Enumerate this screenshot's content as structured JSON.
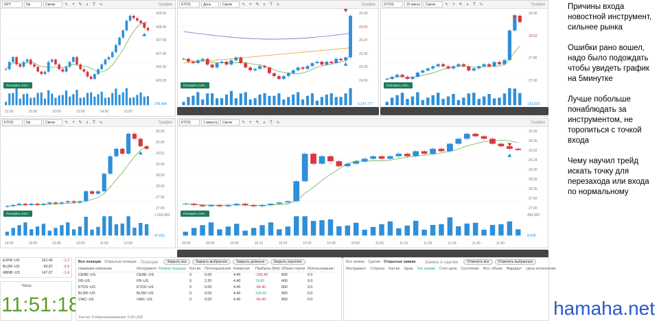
{
  "colors": {
    "up": "#2f8fd8",
    "down": "#d8383f",
    "order_button": "#1e7b5b",
    "clock": "#5c9d2a",
    "watermark": "#2b58c8"
  },
  "toolbar_common": {
    "chart_type": "Свечи",
    "title": "График"
  },
  "charts": [
    {
      "ticker": "SPY",
      "interval": "5м",
      "order_label": "Положить счёт...",
      "y_ticks": [
        "428.50",
        "428.00",
        "427.50",
        "427.00",
        "426.50",
        "426.00"
      ],
      "x_ticks": [
        "12:00",
        "15:00",
        "10:00",
        "12:00",
        "14:00",
        "15:00"
      ],
      "volume_label": "378,404",
      "chart_data": {
        "type": "candlestick",
        "closes": [
          426.6,
          426.9,
          427.1,
          426.8,
          426.7,
          426.9,
          427.0,
          426.8,
          426.7,
          426.5,
          426.4,
          426.5,
          426.9,
          427.0,
          426.8,
          426.6,
          426.5,
          426.7,
          426.9,
          427.1,
          426.8,
          426.6,
          426.5,
          426.3,
          426.2,
          426.4,
          426.6,
          426.8,
          427.0,
          427.1,
          427.3,
          427.6,
          427.9,
          428.2,
          428.6,
          428.8,
          428.7,
          428.6,
          428.5,
          428.3,
          428.2
        ]
      }
    },
    {
      "ticker": "KTOS",
      "interval": "День",
      "order_label": "Положить счёт...",
      "y_ticks": [
        "30.00",
        "29.52",
        "26.97",
        "25.90",
        "25.00",
        "24.00"
      ],
      "x_ticks": [
        "08 Apr",
        "15 Apr",
        "26 Apr",
        "04 May",
        "13 May",
        "20 May",
        "28 May",
        "04 Jun",
        "10 Jun",
        "18 Jun",
        "24 Jun",
        "02 Jul"
      ],
      "volume_label": "5,147,777",
      "chart_data": {
        "type": "candlestick",
        "closes": [
          26.6,
          26.4,
          26.3,
          26.5,
          26.6,
          26.2,
          26.0,
          26.3,
          26.4,
          26.2,
          26.5,
          26.7,
          26.3,
          26.0,
          25.8,
          25.9,
          26.1,
          26.0,
          25.6,
          25.4,
          25.2,
          25.4,
          25.6,
          25.8,
          26.0,
          25.9,
          26.1,
          26.3,
          26.4,
          26.2,
          26.4,
          26.3,
          26.6,
          26.5,
          26.7,
          29.6
        ]
      }
    },
    {
      "ticker": "KTOS",
      "interval": "15 минут",
      "order_label": "Положить счёт...",
      "y_ticks": [
        "30.00",
        "29.52",
        "27.86",
        "27.00"
      ],
      "x_ticks": [
        "12:00",
        "15:00",
        "10:00",
        "12:00",
        "14:00",
        "10:00",
        "12:00",
        "15:00",
        "12:00"
      ],
      "volume_label": "133,603",
      "chart_data": {
        "type": "candlestick",
        "closes": [
          26.9,
          27.0,
          27.1,
          27.0,
          26.9,
          27.0,
          27.2,
          27.3,
          27.4,
          27.5,
          27.6,
          27.5,
          27.4,
          27.5,
          27.6,
          27.5,
          27.3,
          27.4,
          27.5,
          27.6,
          27.5,
          27.7,
          27.6,
          27.8,
          29.2,
          29.9,
          29.6
        ]
      }
    },
    {
      "ticker": "KTOS",
      "interval": "5м",
      "order_label": "Положить счёт...",
      "y_ticks": [
        "30.50",
        "30.00",
        "29.52",
        "29.00",
        "28.50",
        "28.00",
        "27.50",
        "27.00"
      ],
      "x_ticks": [
        "14:00",
        "15:00",
        "15:45",
        "10:00",
        "11:00",
        "12:00"
      ],
      "volume_label": "47,631",
      "volume_top": "1,000,000",
      "chart_data": {
        "type": "candlestick",
        "closes": [
          27.3,
          27.35,
          27.4,
          27.35,
          27.4,
          27.35,
          27.4,
          27.45,
          27.4,
          27.45,
          27.5,
          27.45,
          27.5,
          27.9,
          27.8,
          27.9,
          28.6,
          29.3,
          29.6,
          29.4,
          30.2,
          30.0,
          29.7,
          29.6
        ]
      }
    },
    {
      "ticker": "KTOS",
      "interval": "1 минута",
      "order_label": "Положить счёт...",
      "y_ticks": [
        "30.50",
        "30.00",
        "29.52",
        "29.24",
        "29.00",
        "28.50",
        "28.00",
        "27.50",
        "27.00"
      ],
      "x_ticks": [
        "09:40",
        "09:50",
        "10:00",
        "10:10",
        "10:20",
        "10:30",
        "10:40",
        "10:50",
        "11:00",
        "11:10",
        "11:20",
        "11:30",
        "11:40",
        "11:50"
      ],
      "volume_label": "8,430",
      "volume_top": "400,000",
      "chart_data": {
        "type": "candlestick",
        "closes": [
          27.4,
          27.35,
          27.3,
          27.35,
          27.3,
          27.35,
          27.4,
          27.35,
          27.3,
          27.35,
          27.4,
          27.45,
          27.5,
          28.3,
          29.4,
          29.0,
          29.3,
          29.1,
          28.9,
          29.0,
          29.1,
          29.2,
          29.3,
          29.2,
          29.3,
          29.4,
          29.3,
          29.5,
          29.4,
          29.6,
          29.5,
          29.8,
          30.0,
          30.2,
          30.1,
          30.0,
          29.8,
          29.7,
          29.6,
          29.55
        ]
      }
    }
  ],
  "watchlist": [
    {
      "sym": "EXPE~US",
      "price": "161.40",
      "chg": "-1.2"
    },
    {
      "sym": "BLDR~US",
      "price": "43.87",
      "chg": "-2.9"
    },
    {
      "sym": "ABNB~US",
      "price": "147.67",
      "chg": "-1.4"
    }
  ],
  "clock_panel": {
    "title": "Часы",
    "time": "11:51:18"
  },
  "positions": {
    "tab_all": "Все позиции",
    "tab_open": "Открытые позиции",
    "panel_title": "Позиции",
    "buttons": [
      "Закрыть все",
      "Закрыть выбранное",
      "Закрыть длинные",
      "Закрыть короткие"
    ],
    "columns": [
      "Название компании",
      "Инструмент",
      "Размер позиции",
      "Кол-во",
      "Потенциальная",
      "Комиссия",
      "Прибыль (Net)",
      "Объем торгов",
      "Использование ПС"
    ],
    "rows": [
      [
        "CERE~US",
        "CERE~US",
        "",
        "0",
        "0.00",
        "4.40",
        "-100.40",
        "800",
        "0.0"
      ],
      [
        "FB~US",
        "FB~US",
        "",
        "0",
        "2.20",
        "4.40",
        "74.80",
        "400",
        "0.0"
      ],
      [
        "KTOS~US",
        "KTOS~US",
        "",
        "0",
        "0.00",
        "4.40",
        "-96.40",
        "800",
        "0.0"
      ],
      [
        "BLDR~US",
        "BLDR~US",
        "",
        "0",
        "0.00",
        "4.40",
        "156.60",
        "800",
        "0.0"
      ],
      [
        "VIAC~US",
        "VIAC~US",
        "",
        "0",
        "0.00",
        "4.40",
        "-56.40",
        "800",
        "0.0"
      ]
    ],
    "footer": "Хол-во: 0   Нереализованная: 0.00 USD"
  },
  "orders": {
    "tabs": [
      "Все заявки",
      "Сделки",
      "Открытые заявки"
    ],
    "panel_title": "Заявки и сделки",
    "buttons": [
      "Отменить все",
      "Отменить выбранные"
    ],
    "columns": [
      "Инструмент",
      "Сторона",
      "Кол-во",
      "Цена",
      "Тип заявки",
      "Стоп цена",
      "Состояние",
      "Исп. объем",
      "Маршрут",
      "Цена исполнения"
    ]
  },
  "notes": [
    "Причины входа новостной инструмент, сильнее рынка",
    "Ошибки рано вошел, надо было подождать чтобы увидеть график на 5минутке",
    "Лучше побольше понаблюдать за инструментом, не торопиться с точкой входа",
    "Чему научил трейд искать точку для перезахода или входа по нормальному"
  ],
  "watermark": "hamaha.net"
}
